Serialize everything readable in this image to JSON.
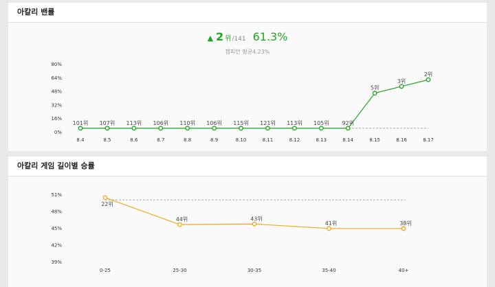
{
  "ban_panel": {
    "title": "아칼리 밴률",
    "summary": {
      "rank": "2",
      "rank_unit": "위",
      "total": "/141",
      "rate": "61.3%",
      "average_label": "챔피언 평균4.23%",
      "trend_icon": "up-triangle-icon"
    }
  },
  "length_panel": {
    "title": "아칼리 게임 길이별 승률"
  },
  "colors": {
    "green": "#1fa51f",
    "orange": "#f0a81a",
    "average_line": "#aaaaaa"
  },
  "chart_data": [
    {
      "type": "line",
      "categories": [
        "8.4",
        "8.5",
        "8.6",
        "8.7",
        "8.8",
        "8.9",
        "8.10",
        "8.11",
        "8.12",
        "8.13",
        "8.14",
        "8.15",
        "8.16",
        "8.17"
      ],
      "series": [
        {
          "values": [
            4.23,
            4.23,
            4.23,
            4.23,
            4.23,
            4.23,
            4.23,
            4.23,
            4.23,
            4.23,
            4.23,
            45.5,
            53.5,
            61.3
          ],
          "labels": [
            "101위",
            "107위",
            "113위",
            "106위",
            "110위",
            "106위",
            "115위",
            "121위",
            "113위",
            "105위",
            "92위",
            "5위",
            "3위",
            "2위"
          ]
        }
      ],
      "reference_line": 4.23,
      "yticks": [
        "80%",
        "64%",
        "48%",
        "32%",
        "16%",
        "0%"
      ],
      "ylim": [
        0,
        80
      ],
      "grid": false
    },
    {
      "type": "line",
      "categories": [
        "0-25",
        "25-30",
        "30-35",
        "35-40",
        "40+"
      ],
      "series": [
        {
          "values": [
            50.4,
            45.6,
            45.7,
            44.9,
            44.9
          ],
          "labels": [
            "22위",
            "44위",
            "43위",
            "41위",
            "38위"
          ]
        }
      ],
      "reference_line": 50,
      "yticks": [
        "51%",
        "48%",
        "45%",
        "42%",
        "39%"
      ],
      "ylim": [
        39,
        51
      ],
      "grid": false
    }
  ]
}
